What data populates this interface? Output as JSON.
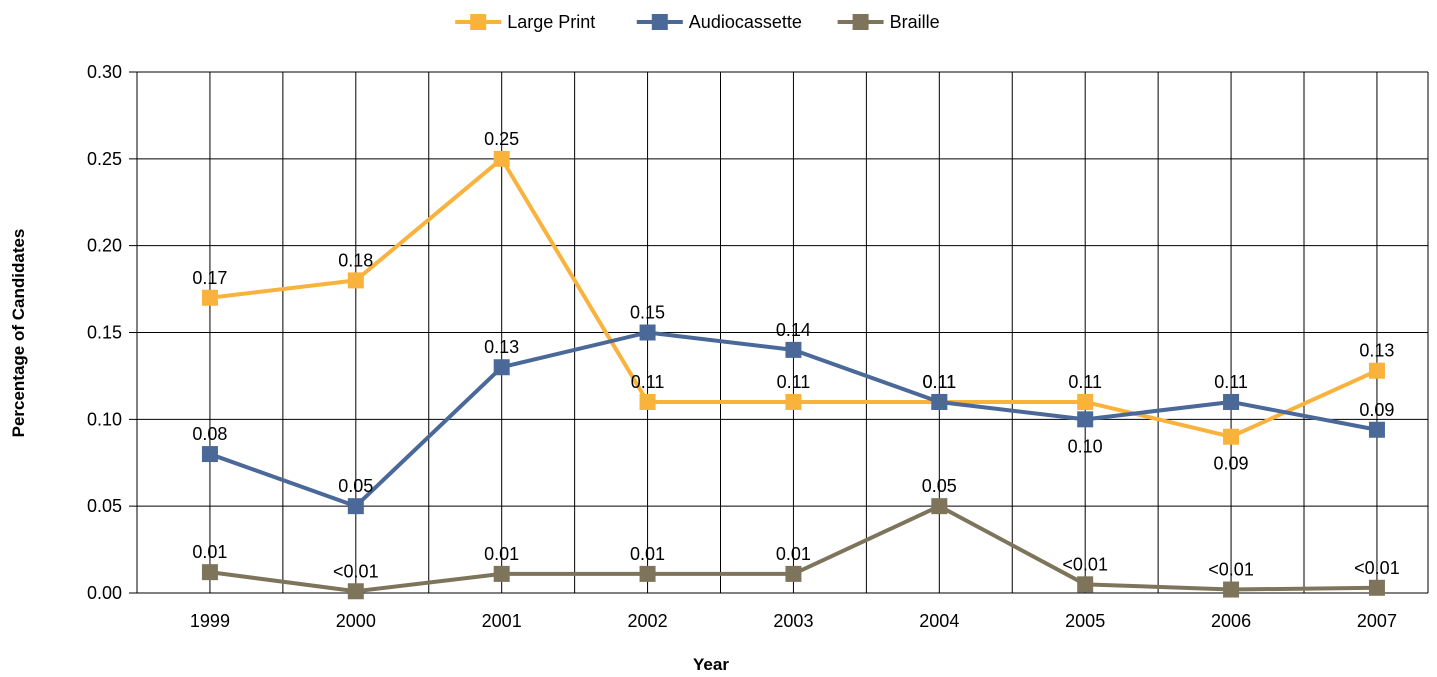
{
  "chart_data": {
    "type": "line",
    "title": "",
    "xlabel": "Year",
    "ylabel": "Percentage of Candidates",
    "categories": [
      "1999",
      "2000",
      "2001",
      "2002",
      "2003",
      "2004",
      "2005",
      "2006",
      "2007"
    ],
    "ylim": [
      0,
      0.3
    ],
    "yticks": [
      "0.00",
      "0.05",
      "0.10",
      "0.15",
      "0.20",
      "0.25",
      "0.30"
    ],
    "grid": true,
    "legend_position": "top-center",
    "series": [
      {
        "name": "Large Print",
        "color": "#F9B23C",
        "values": [
          0.17,
          0.18,
          0.25,
          0.11,
          0.11,
          0.11,
          0.11,
          0.09,
          0.128
        ],
        "labels": [
          "0.17",
          "0.18",
          "0.25",
          "0.11",
          "0.11",
          "0.11",
          "0.11",
          "0.09",
          "0.13"
        ],
        "label_pos": [
          "above",
          "above",
          "above",
          "above",
          "above",
          "above",
          "above",
          "below",
          "above"
        ]
      },
      {
        "name": "Audiocassette",
        "color": "#4A6898",
        "values": [
          0.08,
          0.05,
          0.13,
          0.15,
          0.14,
          0.11,
          0.1,
          0.11,
          0.094
        ],
        "labels": [
          "0.08",
          "0.05",
          "0.13",
          "0.15",
          "0.14",
          "0.11",
          "0.10",
          "0.11",
          "0.09"
        ],
        "label_pos": [
          "above",
          "above",
          "above",
          "above",
          "above",
          "above",
          "below",
          "above",
          "above"
        ]
      },
      {
        "name": "Braille",
        "color": "#7E745C",
        "values": [
          0.012,
          0.001,
          0.011,
          0.011,
          0.011,
          0.05,
          0.005,
          0.002,
          0.003
        ],
        "labels": [
          "0.01",
          "<0.01",
          "0.01",
          "0.01",
          "0.01",
          "0.05",
          "<0.01",
          "<0.01",
          "<0.01"
        ],
        "label_pos": [
          "above",
          "above",
          "above",
          "above",
          "above",
          "above",
          "above",
          "above",
          "above"
        ]
      }
    ]
  }
}
